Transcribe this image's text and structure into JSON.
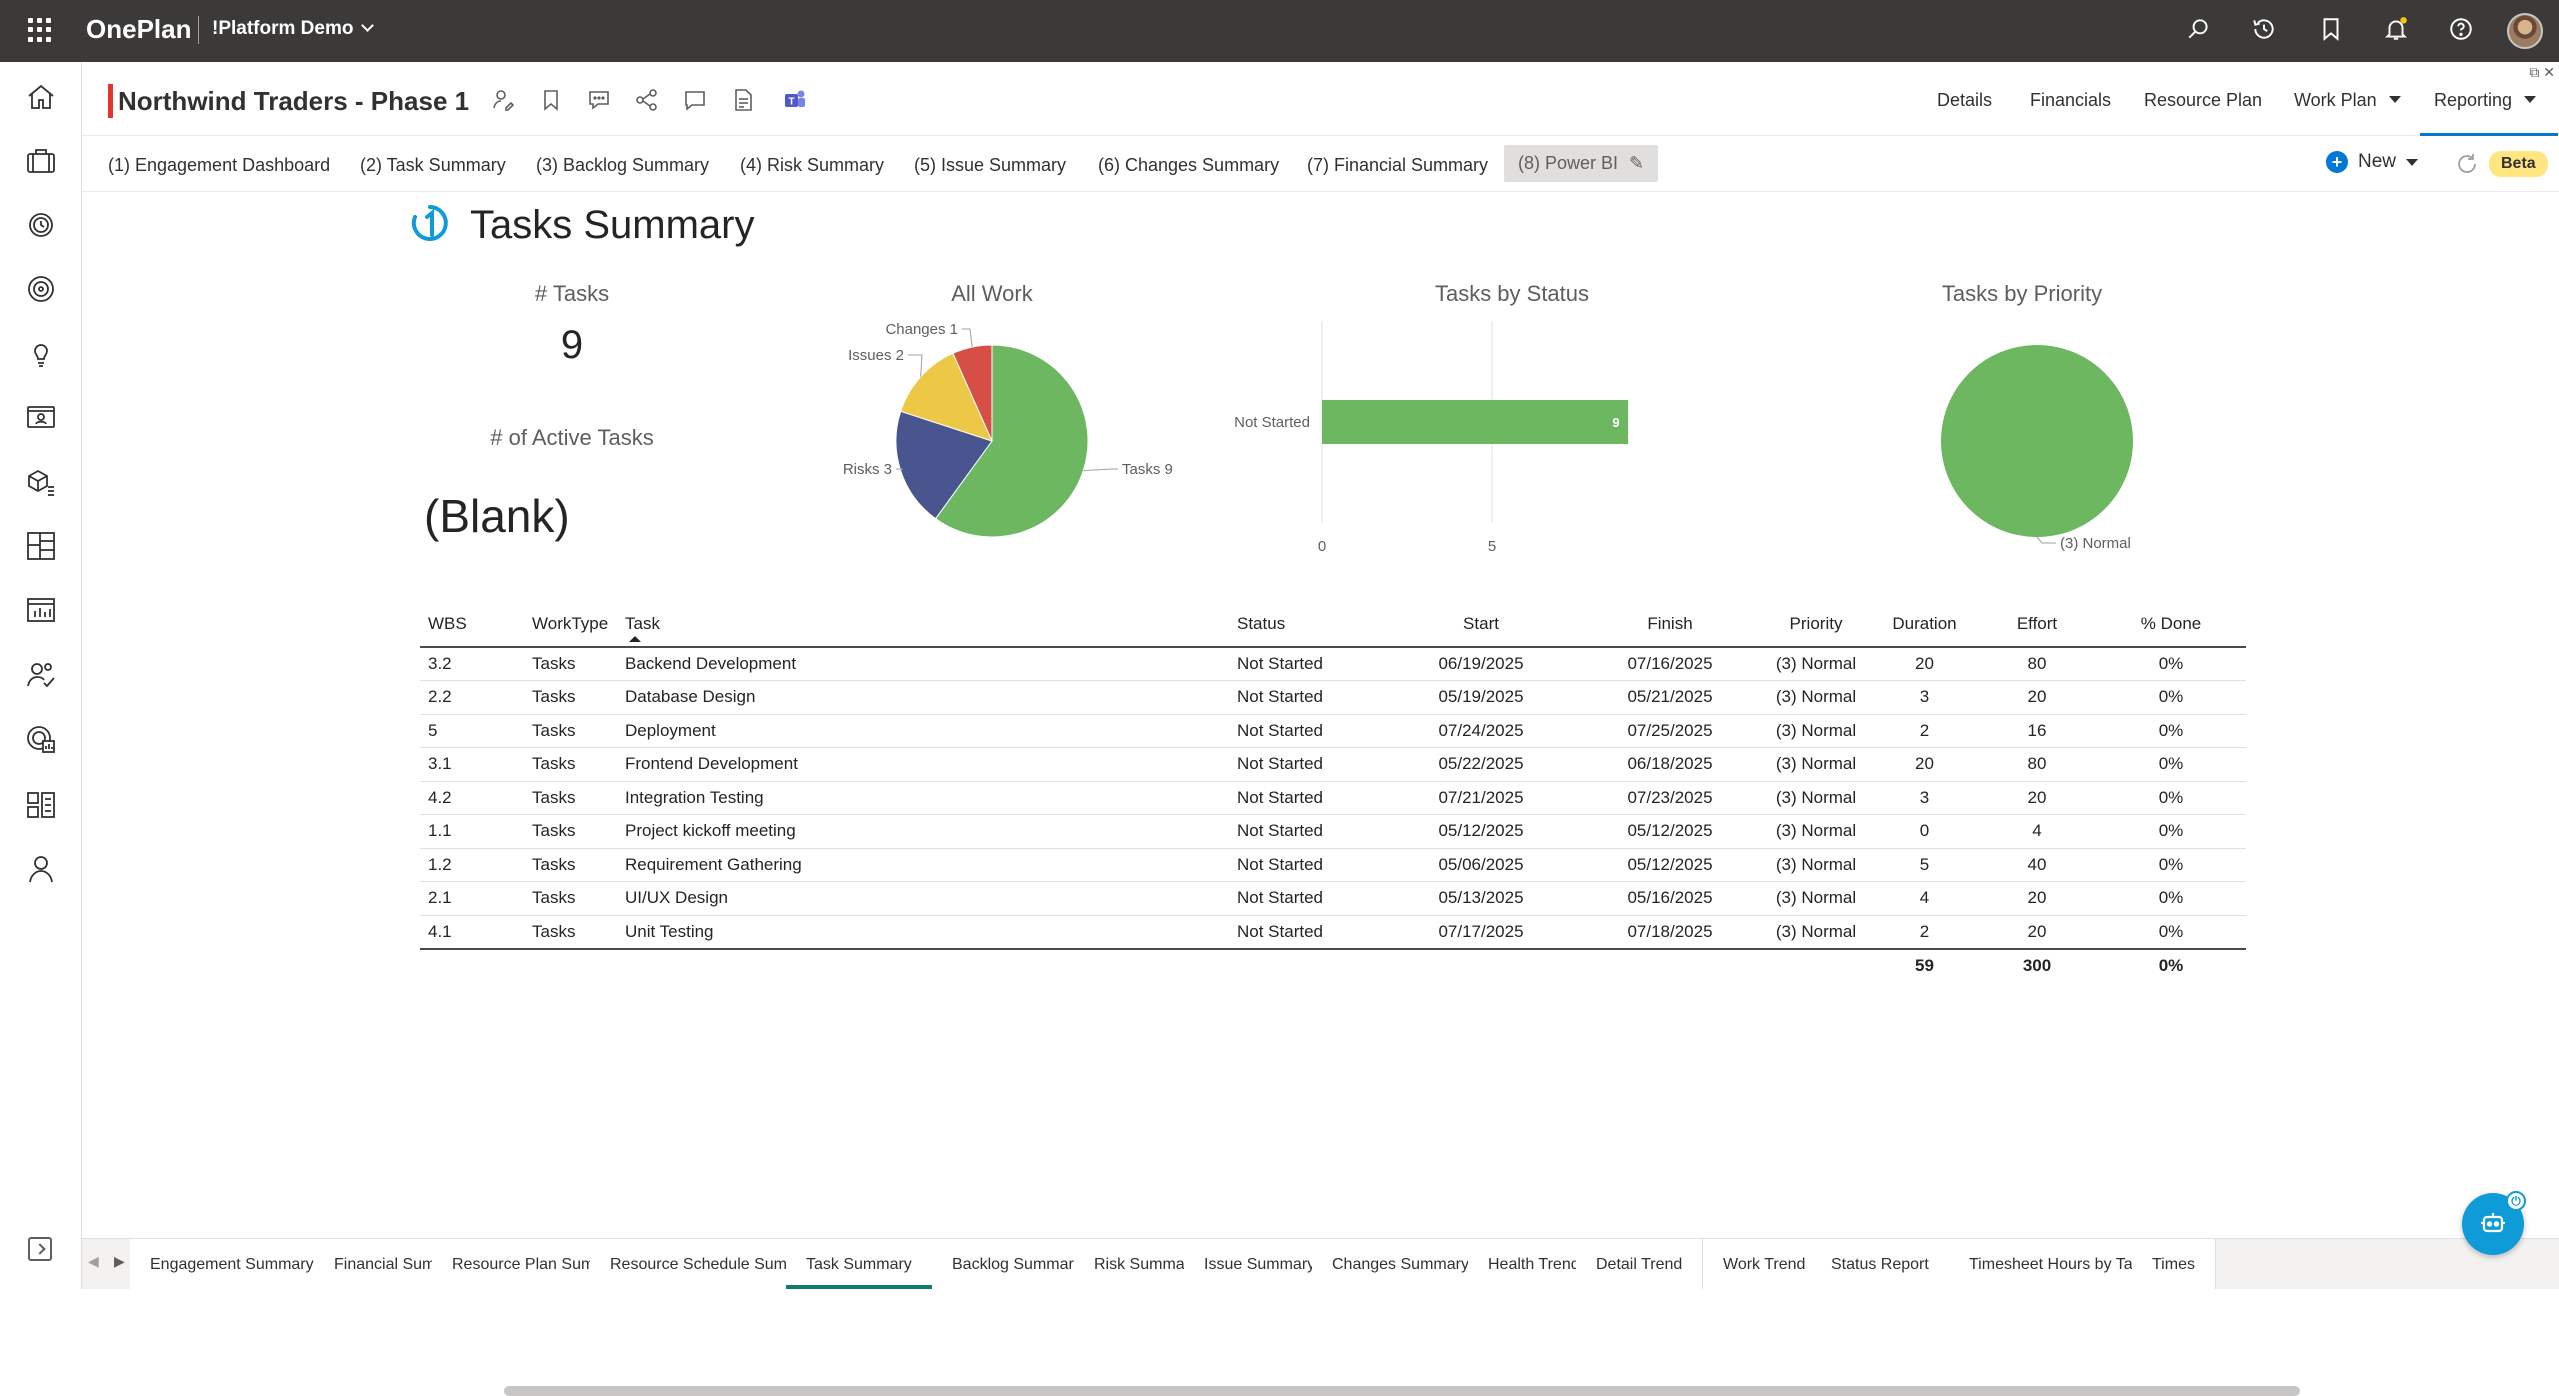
{
  "app": {
    "brand": "OnePlan",
    "org": "!Platform Demo"
  },
  "project": {
    "title": "Northwind Traders - Phase 1"
  },
  "nav": {
    "details": "Details",
    "financials": "Financials",
    "resource_plan": "Resource Plan",
    "work_plan": "Work Plan",
    "reporting": "Reporting"
  },
  "report_tabs": [
    "(1) Engagement Dashboard",
    "(2) Task Summary",
    "(3) Backlog Summary",
    "(4) Risk Summary",
    "(5) Issue Summary",
    "(6) Changes Summary",
    "(7) Financial Summary",
    "(8) Power BI"
  ],
  "toolbar": {
    "new_label": "New",
    "beta_label": "Beta"
  },
  "report": {
    "title": "Tasks Summary",
    "tasks_card": {
      "label": "# Tasks",
      "value": "9"
    },
    "active_card": {
      "label": "# of Active Tasks",
      "value": "(Blank)"
    },
    "all_work_title": "All Work",
    "status_title": "Tasks by Status",
    "priority_title": "Tasks by Priority"
  },
  "chart_data": [
    {
      "type": "pie",
      "title": "All Work",
      "slices": [
        {
          "label": "Tasks 9",
          "value": 9,
          "color": "#6db761"
        },
        {
          "label": "Risks 3",
          "value": 3,
          "color": "#48558e"
        },
        {
          "label": "Issues 2",
          "value": 2,
          "color": "#ecc846"
        },
        {
          "label": "Changes 1",
          "value": 1,
          "color": "#d64f46"
        }
      ]
    },
    {
      "type": "bar",
      "title": "Tasks by Status",
      "orientation": "horizontal",
      "categories": [
        "Not Started"
      ],
      "values": [
        9
      ],
      "data_labels": [
        "9"
      ],
      "xticks": [
        "0",
        "5"
      ],
      "xlim": [
        0,
        10
      ],
      "color": "#6db761"
    },
    {
      "type": "pie",
      "title": "Tasks by Priority",
      "slices": [
        {
          "label": "(3) Normal",
          "value": 9,
          "color": "#6db761"
        }
      ]
    }
  ],
  "table": {
    "columns": [
      "WBS",
      "WorkType",
      "Task",
      "Status",
      "Start",
      "Finish",
      "Priority",
      "Duration",
      "Effort",
      "% Done"
    ],
    "rows": [
      [
        "3.2",
        "Tasks",
        "Backend Development",
        "Not Started",
        "06/19/2025",
        "07/16/2025",
        "(3) Normal",
        "20",
        "80",
        "0%"
      ],
      [
        "2.2",
        "Tasks",
        "Database Design",
        "Not Started",
        "05/19/2025",
        "05/21/2025",
        "(3) Normal",
        "3",
        "20",
        "0%"
      ],
      [
        "5",
        "Tasks",
        "Deployment",
        "Not Started",
        "07/24/2025",
        "07/25/2025",
        "(3) Normal",
        "2",
        "16",
        "0%"
      ],
      [
        "3.1",
        "Tasks",
        "Frontend Development",
        "Not Started",
        "05/22/2025",
        "06/18/2025",
        "(3) Normal",
        "20",
        "80",
        "0%"
      ],
      [
        "4.2",
        "Tasks",
        "Integration Testing",
        "Not Started",
        "07/21/2025",
        "07/23/2025",
        "(3) Normal",
        "3",
        "20",
        "0%"
      ],
      [
        "1.1",
        "Tasks",
        "Project kickoff meeting",
        "Not Started",
        "05/12/2025",
        "05/12/2025",
        "(3) Normal",
        "0",
        "4",
        "0%"
      ],
      [
        "1.2",
        "Tasks",
        "Requirement Gathering",
        "Not Started",
        "05/06/2025",
        "05/12/2025",
        "(3) Normal",
        "5",
        "40",
        "0%"
      ],
      [
        "2.1",
        "Tasks",
        "UI/UX Design",
        "Not Started",
        "05/13/2025",
        "05/16/2025",
        "(3) Normal",
        "4",
        "20",
        "0%"
      ],
      [
        "4.1",
        "Tasks",
        "Unit Testing",
        "Not Started",
        "07/17/2025",
        "07/18/2025",
        "(3) Normal",
        "2",
        "20",
        "0%"
      ]
    ],
    "totals": {
      "duration": "59",
      "effort": "300",
      "done": "0%"
    }
  },
  "bottom_tabs": [
    "Engagement Summary",
    "Financial Summary",
    "Resource Plan Summary",
    "Resource Schedule Summary",
    "Task Summary",
    "Backlog Summary",
    "Risk Summary",
    "Issue Summary",
    "Changes Summary",
    "Health Trend",
    "Detail Trend",
    "Work Trend",
    "Status Report",
    "Timesheet Hours by Task",
    "Times"
  ],
  "active_bottom_tab": "Task Summary",
  "colors": {
    "accent": "#0078d4",
    "brand_red": "#e3352b",
    "topbar": "#3b3a39",
    "beta": "#ffe681",
    "green": "#6db761"
  }
}
